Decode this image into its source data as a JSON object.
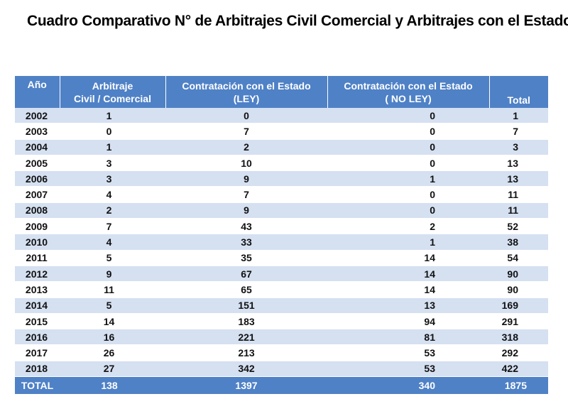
{
  "title": "Cuadro Comparativo N° de Arbitrajes Civil Comercial y Arbitrajes con el Estado",
  "table": {
    "headers": {
      "year": "Año",
      "civil_line1": "Arbitraje",
      "civil_line2": "Civil / Comercial",
      "ley_line1": "Contratación con el  Estado",
      "ley_line2": "(LEY)",
      "noley_line1": "Contratación con el  Estado",
      "noley_line2": "( NO LEY)",
      "total": "Total"
    },
    "rows": [
      {
        "year": "2002",
        "civil": "1",
        "ley": "0",
        "noley": "0",
        "total": "1"
      },
      {
        "year": "2003",
        "civil": "0",
        "ley": "7",
        "noley": "0",
        "total": "7"
      },
      {
        "year": "2004",
        "civil": "1",
        "ley": "2",
        "noley": "0",
        "total": "3"
      },
      {
        "year": "2005",
        "civil": "3",
        "ley": "10",
        "noley": "0",
        "total": "13"
      },
      {
        "year": "2006",
        "civil": "3",
        "ley": "9",
        "noley": "1",
        "total": "13"
      },
      {
        "year": "2007",
        "civil": "4",
        "ley": "7",
        "noley": "0",
        "total": "11"
      },
      {
        "year": "2008",
        "civil": "2",
        "ley": "9",
        "noley": "0",
        "total": "11"
      },
      {
        "year": "2009",
        "civil": "7",
        "ley": "43",
        "noley": "2",
        "total": "52"
      },
      {
        "year": "2010",
        "civil": "4",
        "ley": "33",
        "noley": "1",
        "total": "38"
      },
      {
        "year": "2011",
        "civil": "5",
        "ley": "35",
        "noley": "14",
        "total": "54"
      },
      {
        "year": "2012",
        "civil": "9",
        "ley": "67",
        "noley": "14",
        "total": "90"
      },
      {
        "year": "2013",
        "civil": "11",
        "ley": "65",
        "noley": "14",
        "total": "90"
      },
      {
        "year": "2014",
        "civil": "5",
        "ley": "151",
        "noley": "13",
        "total": "169"
      },
      {
        "year": "2015",
        "civil": "14",
        "ley": "183",
        "noley": "94",
        "total": "291"
      },
      {
        "year": "2016",
        "civil": "16",
        "ley": "221",
        "noley": "81",
        "total": "318"
      },
      {
        "year": "2017",
        "civil": "26",
        "ley": "213",
        "noley": "53",
        "total": "292"
      },
      {
        "year": "2018",
        "civil": "27",
        "ley": "342",
        "noley": "53",
        "total": "422"
      }
    ],
    "footer": {
      "label": "TOTAL",
      "civil": "138",
      "ley": "1397",
      "noley": "340",
      "total": "1875"
    }
  },
  "colors": {
    "header_bg": "#4f81c6",
    "header_text": "#ffffff",
    "band_row": "#d5e0f1",
    "plain_row": "#ffffff"
  }
}
